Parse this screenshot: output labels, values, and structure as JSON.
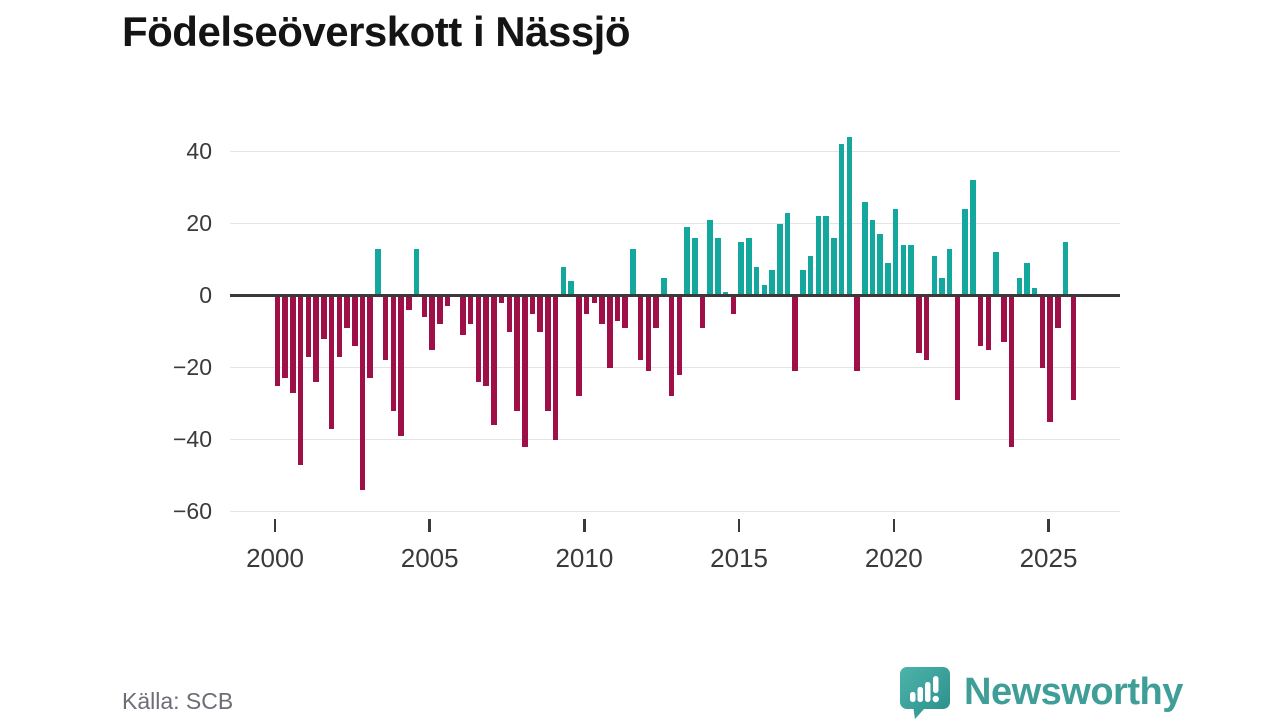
{
  "title": "Födelseöverskott i Nässjö",
  "source": "Källa: SCB",
  "brand": {
    "name": "Newsworthy"
  },
  "chart_data": {
    "type": "bar",
    "title": "Födelseöverskott i Nässjö",
    "period": "quarterly",
    "start_year": 2000,
    "start_quarter": 1,
    "series": [
      {
        "name": "Födelseöverskott",
        "values": [
          -25,
          -23,
          -27,
          -47,
          -17,
          -24,
          -12,
          -37,
          -17,
          -9,
          -14,
          -54,
          -23,
          13,
          -18,
          -32,
          -39,
          -4,
          13,
          -6,
          -15,
          -8,
          -3,
          0,
          -11,
          -8,
          -24,
          -25,
          -36,
          -2,
          -10,
          -32,
          -42,
          -5,
          -10,
          -32,
          -40,
          8,
          4,
          -28,
          -5,
          -2,
          -8,
          -20,
          -7,
          -9,
          13,
          -18,
          -21,
          -9,
          5,
          -28,
          -22,
          19,
          16,
          -9,
          21,
          16,
          1,
          -5,
          15,
          16,
          8,
          3,
          7,
          20,
          23,
          -21,
          7,
          11,
          22,
          22,
          16,
          42,
          44,
          -21,
          26,
          21,
          17,
          9,
          24,
          14,
          14,
          -16,
          -18,
          11,
          5,
          13,
          -29,
          24,
          32,
          -14,
          -15,
          12,
          -13,
          -42,
          5,
          9,
          2,
          -20,
          -35,
          -9,
          15,
          -29
        ]
      }
    ],
    "y_ticks": [
      40,
      20,
      0,
      -20,
      -40,
      -60
    ],
    "y_tick_labels": [
      "40",
      "20",
      "0",
      "−20",
      "−40",
      "−60"
    ],
    "x_tick_labels": [
      "2000",
      "2005",
      "2010",
      "2015",
      "2020",
      "2025"
    ],
    "ylim": [
      -60,
      46
    ],
    "grid": "horizontal",
    "legend": "none",
    "colors": {
      "positive": "#14a79e",
      "negative": "#a01048"
    }
  }
}
